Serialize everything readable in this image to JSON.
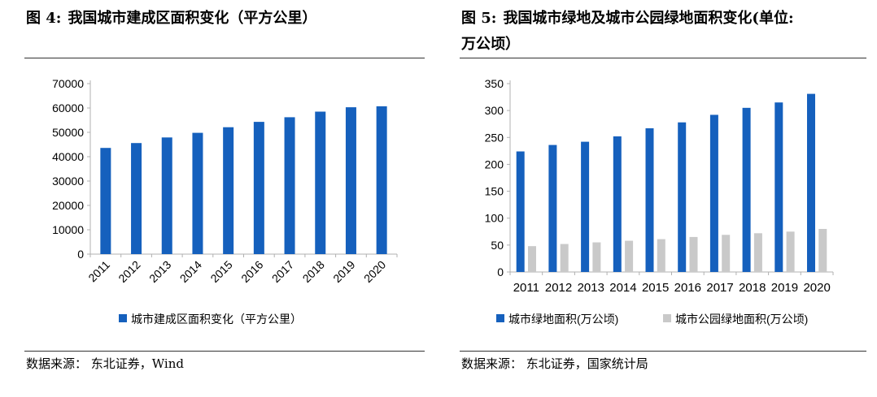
{
  "left": {
    "figure_label": "图 4:",
    "title": "我国城市建成区面积变化（平方公里）",
    "source": "数据来源：  东北证券，Wind"
  },
  "right": {
    "figure_label": "图 5:",
    "title_line1": "我国城市绿地及城市公园绿地面积变化(单位:",
    "title_line2": "万公顷）",
    "source": "数据来源：  东北证券，国家统计局"
  },
  "colors": {
    "blue": "#1560BD",
    "gray": "#C9C9C9",
    "axis": "#B0B0B0"
  },
  "chart_data": [
    {
      "type": "bar",
      "categories": [
        "2011",
        "2012",
        "2013",
        "2014",
        "2015",
        "2016",
        "2017",
        "2018",
        "2019",
        "2020"
      ],
      "series": [
        {
          "name": "城市建成区面积变化（平方公里）",
          "values": [
            43600,
            45600,
            47900,
            49800,
            52100,
            54300,
            56200,
            58500,
            60300,
            60700
          ]
        }
      ],
      "yticks": [
        "0",
        "10000",
        "20000",
        "30000",
        "40000",
        "50000",
        "60000",
        "70000"
      ],
      "ylim": [
        0,
        70000
      ],
      "xlabel": "",
      "ylabel": "",
      "legend": "bottom",
      "grid": false
    },
    {
      "type": "bar",
      "categories": [
        "2011",
        "2012",
        "2013",
        "2014",
        "2015",
        "2016",
        "2017",
        "2018",
        "2019",
        "2020"
      ],
      "series": [
        {
          "name": "城市绿地面积(万公顷)",
          "values": [
            224,
            236,
            242,
            252,
            267,
            278,
            292,
            305,
            315,
            331
          ]
        },
        {
          "name": "城市公园绿地面积(万公顷)",
          "values": [
            48,
            52,
            55,
            58,
            61,
            65,
            69,
            72,
            75,
            80
          ]
        }
      ],
      "yticks": [
        "0",
        "50",
        "100",
        "150",
        "200",
        "250",
        "300",
        "350"
      ],
      "ylim": [
        0,
        350
      ],
      "xlabel": "",
      "ylabel": "",
      "legend": "bottom",
      "grid": false
    }
  ]
}
